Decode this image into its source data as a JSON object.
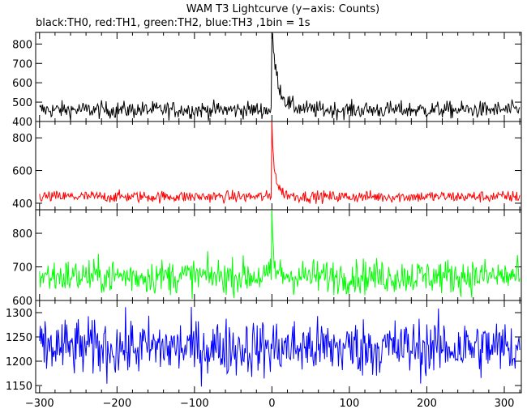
{
  "title": "WAM T3 Lightcurve (y−axis: Counts)",
  "subtitle": "black:TH0, red:TH1, green:TH2, blue:TH3 ,1bin = 1s",
  "chart_data": [
    {
      "type": "line",
      "name": "TH0",
      "color": "#000000",
      "xlim": [
        -305,
        322
      ],
      "ylim": [
        400,
        860
      ],
      "yticks": [
        400,
        500,
        600,
        700,
        800
      ],
      "baseline": 460,
      "noise": 22,
      "peak": {
        "x": 0,
        "value": 860,
        "decay_s": 6,
        "tail": 160,
        "tail_decay_s": 12
      },
      "points": [
        {
          "x": -300,
          "y": 458
        },
        {
          "x": -200,
          "y": 462
        },
        {
          "x": -100,
          "y": 458
        },
        {
          "x": -10,
          "y": 470
        },
        {
          "x": 0,
          "y": 860
        },
        {
          "x": 2,
          "y": 700
        },
        {
          "x": 5,
          "y": 620
        },
        {
          "x": 10,
          "y": 570
        },
        {
          "x": 20,
          "y": 520
        },
        {
          "x": 40,
          "y": 480
        },
        {
          "x": 100,
          "y": 462
        },
        {
          "x": 200,
          "y": 460
        },
        {
          "x": 320,
          "y": 458
        }
      ]
    },
    {
      "type": "line",
      "name": "TH1",
      "color": "#ff0000",
      "xlim": [
        -305,
        322
      ],
      "ylim": [
        360,
        900
      ],
      "yticks": [
        400,
        600,
        800
      ],
      "baseline": 440,
      "noise": 18,
      "peak": {
        "x": 0,
        "value": 900,
        "decay_s": 2.5,
        "tail": 150,
        "tail_decay_s": 8
      },
      "points": [
        {
          "x": -300,
          "y": 440
        },
        {
          "x": -200,
          "y": 442
        },
        {
          "x": -100,
          "y": 440
        },
        {
          "x": -10,
          "y": 445
        },
        {
          "x": 0,
          "y": 900
        },
        {
          "x": 2,
          "y": 640
        },
        {
          "x": 5,
          "y": 560
        },
        {
          "x": 10,
          "y": 500
        },
        {
          "x": 20,
          "y": 470
        },
        {
          "x": 40,
          "y": 450
        },
        {
          "x": 100,
          "y": 440
        },
        {
          "x": 200,
          "y": 440
        },
        {
          "x": 320,
          "y": 438
        }
      ]
    },
    {
      "type": "line",
      "name": "TH2",
      "color": "#00ff00",
      "xlim": [
        -305,
        322
      ],
      "ylim": [
        600,
        870
      ],
      "yticks": [
        600,
        700,
        800
      ],
      "baseline": 672,
      "noise": 26,
      "peak": {
        "x": 0,
        "value": 870,
        "decay_s": 1.5,
        "tail": 20,
        "tail_decay_s": 10
      },
      "points": [
        {
          "x": -300,
          "y": 672
        },
        {
          "x": -200,
          "y": 670
        },
        {
          "x": -100,
          "y": 672
        },
        {
          "x": 0,
          "y": 870
        },
        {
          "x": 3,
          "y": 740
        },
        {
          "x": 10,
          "y": 690
        },
        {
          "x": 100,
          "y": 672
        },
        {
          "x": 200,
          "y": 670
        },
        {
          "x": 320,
          "y": 668
        }
      ]
    },
    {
      "type": "line",
      "name": "TH3",
      "color": "#0000ff",
      "xlim": [
        -305,
        322
      ],
      "ylim": [
        1135,
        1325
      ],
      "yticks": [
        1150,
        1200,
        1250,
        1300
      ],
      "baseline": 1228,
      "noise": 30,
      "peak": null,
      "points": [
        {
          "x": -300,
          "y": 1228
        },
        {
          "x": -200,
          "y": 1230
        },
        {
          "x": -100,
          "y": 1226
        },
        {
          "x": 0,
          "y": 1228
        },
        {
          "x": 100,
          "y": 1230
        },
        {
          "x": 200,
          "y": 1226
        },
        {
          "x": 320,
          "y": 1228
        }
      ]
    }
  ],
  "x_axis": {
    "ticks": [
      -300,
      -200,
      -100,
      0,
      100,
      200,
      300
    ],
    "tick_labels": [
      "−300",
      "−200",
      "−100",
      "0",
      "100",
      "200",
      "300"
    ],
    "bin_width_s": 1
  }
}
